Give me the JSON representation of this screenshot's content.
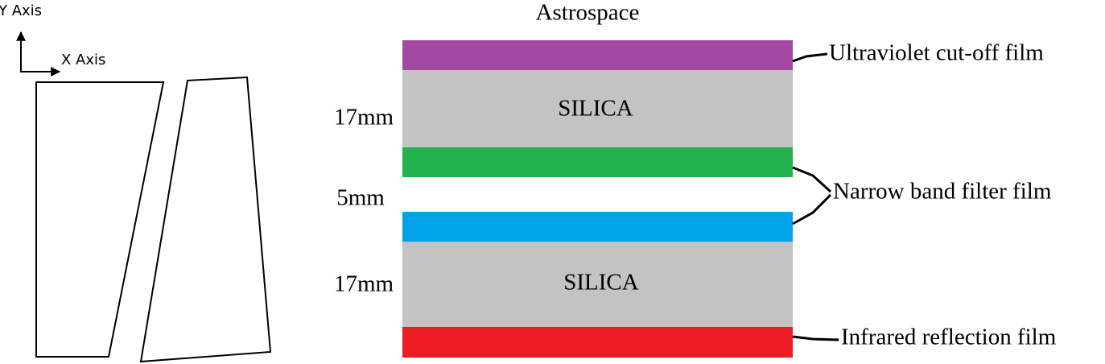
{
  "axes": {
    "y_label": "Y Axis",
    "x_label": "X Axis"
  },
  "stack": {
    "title": "Astrospace",
    "layers": [
      {
        "label": "SILICA",
        "thickness": "17mm"
      },
      {
        "label": "SILICA",
        "thickness": "17mm"
      }
    ],
    "gap": {
      "thickness": "5mm"
    },
    "films": [
      "Ultraviolet cut-off film",
      "Narrow band filter film",
      "Infrared reflection film"
    ]
  }
}
